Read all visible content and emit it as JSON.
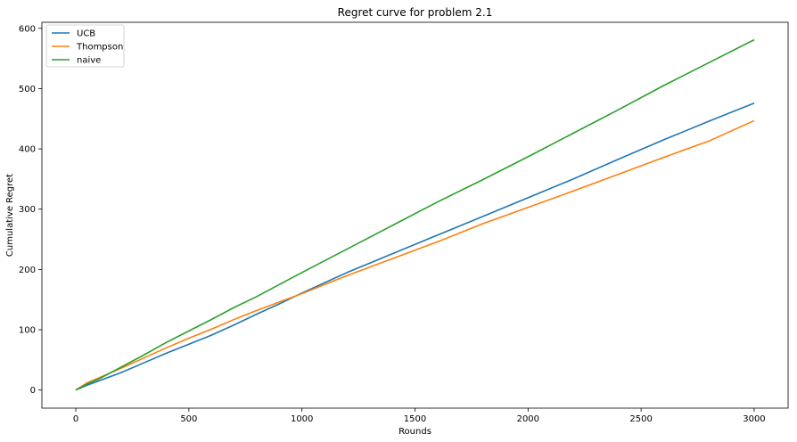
{
  "chart_data": {
    "type": "line",
    "title": "Regret curve for problem 2.1",
    "xlabel": "Rounds",
    "ylabel": "Cumulative Regret",
    "xlim": [
      -150,
      3150
    ],
    "ylim": [
      -30,
      610
    ],
    "xticks": [
      0,
      500,
      1000,
      1500,
      2000,
      2500,
      3000
    ],
    "yticks": [
      0,
      100,
      200,
      300,
      400,
      500,
      600
    ],
    "grid": false,
    "legend_position": "top-left",
    "series": [
      {
        "name": "UCB",
        "color": "#1f77b4",
        "x": [
          0,
          50,
          100,
          200,
          300,
          400,
          500,
          600,
          700,
          800,
          900,
          1000,
          1200,
          1400,
          1600,
          1800,
          2000,
          2200,
          2400,
          2600,
          2800,
          3000
        ],
        "y": [
          0,
          8,
          15,
          29,
          45,
          61,
          76,
          91,
          108,
          126,
          143,
          161,
          195,
          226,
          257,
          288,
          319,
          350,
          383,
          415,
          446,
          476
        ]
      },
      {
        "name": "Thompson",
        "color": "#ff7f0e",
        "x": [
          0,
          50,
          100,
          200,
          300,
          400,
          500,
          600,
          700,
          800,
          900,
          1000,
          1200,
          1400,
          1600,
          1800,
          2000,
          2200,
          2400,
          2600,
          2800,
          3000
        ],
        "y": [
          0,
          12,
          20,
          36,
          53,
          70,
          86,
          101,
          117,
          132,
          146,
          160,
          190,
          218,
          246,
          276,
          303,
          330,
          358,
          386,
          413,
          447
        ]
      },
      {
        "name": "naive",
        "color": "#2ca02c",
        "x": [
          0,
          50,
          100,
          200,
          300,
          400,
          500,
          600,
          700,
          800,
          900,
          1000,
          1200,
          1400,
          1600,
          1800,
          2000,
          2200,
          2400,
          2600,
          2800,
          3000
        ],
        "y": [
          0,
          10,
          18,
          38,
          58,
          79,
          98,
          117,
          137,
          155,
          175,
          195,
          234,
          273,
          312,
          349,
          387,
          426,
          465,
          505,
          543,
          581
        ]
      }
    ]
  }
}
